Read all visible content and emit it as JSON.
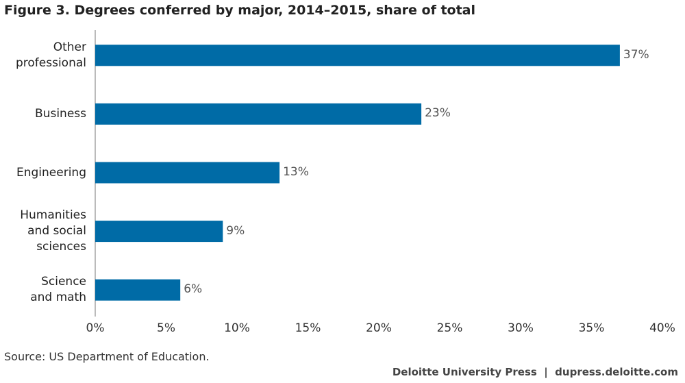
{
  "chart_data": {
    "type": "hbar",
    "title": "Figure 3. Degrees conferred by major, 2014–2015, share of total",
    "categories": [
      "Other\nprofessional",
      "Business",
      "Engineering",
      "Humanities\nand social\nsciences",
      "Science\nand math"
    ],
    "values": [
      37,
      23,
      13,
      9,
      6
    ],
    "value_labels": [
      "37%",
      "23%",
      "13%",
      "9%",
      "6%"
    ],
    "color": "#006ba6",
    "xlim": [
      0,
      40
    ],
    "xticks": [
      {
        "value": 0,
        "label": "0%"
      },
      {
        "value": 5,
        "label": "5%"
      },
      {
        "value": 10,
        "label": "10%"
      },
      {
        "value": 15,
        "label": "15%"
      },
      {
        "value": 20,
        "label": "20%"
      },
      {
        "value": 25,
        "label": "25%"
      },
      {
        "value": 30,
        "label": "30%"
      },
      {
        "value": 35,
        "label": "35%"
      },
      {
        "value": 40,
        "label": "40%"
      }
    ],
    "source": "Source: US Department of Education.",
    "footer": "Deloitte University Press  |  dupress.deloitte.com"
  }
}
